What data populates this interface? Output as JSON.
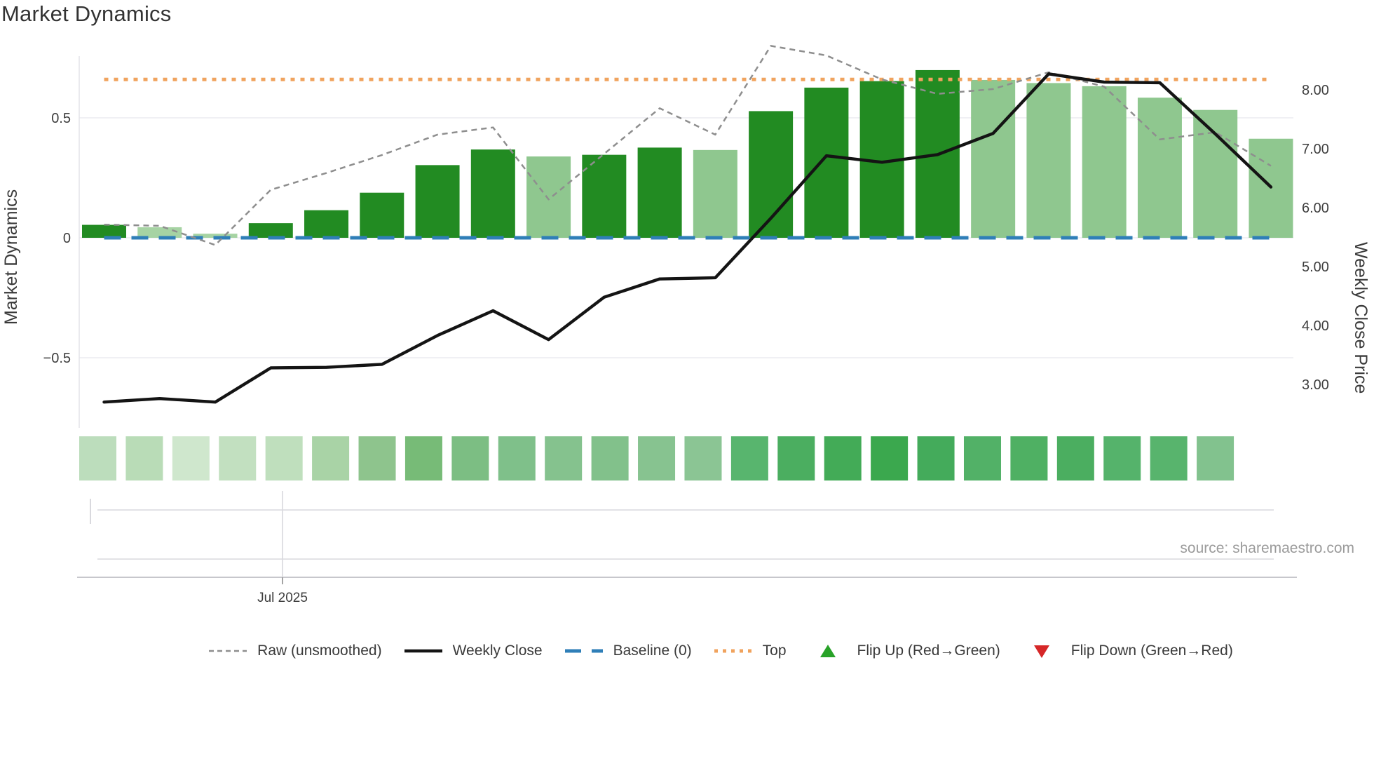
{
  "title": "Market Dynamics",
  "source": "source: sharemaestro.com",
  "axes": {
    "left": {
      "title": "Market Dynamics",
      "ticks": [
        {
          "value": 0.5,
          "label": "0.5"
        },
        {
          "value": 0,
          "label": "0"
        },
        {
          "value": -0.5,
          "label": "−0.5"
        }
      ]
    },
    "right": {
      "title": "Weekly Close Price",
      "ticks": [
        {
          "value": 8,
          "label": "8.00"
        },
        {
          "value": 7,
          "label": "7.00"
        },
        {
          "value": 6,
          "label": "6.00"
        },
        {
          "value": 5,
          "label": "5.00"
        },
        {
          "value": 4,
          "label": "4.00"
        },
        {
          "value": 3,
          "label": "3.00"
        }
      ]
    },
    "bottom": {
      "tick_label": "Jul 2025"
    }
  },
  "legend": {
    "items": [
      {
        "label": "Raw (unsmoothed)",
        "swatch": "dash",
        "color": "#8e8e8e"
      },
      {
        "label": "Weekly Close",
        "swatch": "solid",
        "color": "#141414"
      },
      {
        "label": "Baseline (0)",
        "swatch": "longdash",
        "color": "#2f7fb8"
      },
      {
        "label": "Top",
        "swatch": "dot",
        "color": "#f0a35e"
      },
      {
        "label": "Flip Up (Red→Green)",
        "swatch": "triangle-up",
        "color": "#28a228"
      },
      {
        "label": "Flip Down (Green→Red)",
        "swatch": "triangle-down",
        "color": "#d62728"
      }
    ]
  },
  "colors": {
    "bar_dark": "#228b22",
    "bar_light": "#8fc78f",
    "bar_pale": "#a6d3a3",
    "weekly_close": "#141414",
    "raw_line": "#8e8e8e",
    "baseline": "#2f7fb8",
    "top_line": "#f0a35e",
    "grid": "#ebebf0",
    "spine": "#e4e4e9",
    "slider_line": "#d9d9de",
    "axis_line": "#c7c7cc"
  },
  "chart_data": {
    "type": "bar+line",
    "n_periods": 22,
    "bars": {
      "name": "Market Dynamics score",
      "values": [
        0.054,
        0.044,
        0.017,
        0.061,
        0.115,
        0.188,
        0.303,
        0.368,
        0.339,
        0.346,
        0.376,
        0.366,
        0.528,
        0.626,
        0.653,
        0.699,
        0.658,
        0.645,
        0.632,
        0.584,
        0.533,
        0.413
      ],
      "shade": [
        "dark",
        "pale",
        "pale",
        "dark",
        "dark",
        "dark",
        "dark",
        "dark",
        "light",
        "dark",
        "dark",
        "light",
        "dark",
        "dark",
        "dark",
        "dark",
        "light",
        "light",
        "light",
        "light",
        "light",
        "light"
      ]
    },
    "weekly_close": {
      "name": "Weekly Close",
      "axis": "right",
      "values": [
        2.7,
        2.76,
        2.7,
        3.28,
        3.29,
        3.34,
        3.83,
        4.25,
        3.76,
        4.48,
        4.79,
        4.81,
        5.82,
        6.88,
        6.77,
        6.9,
        7.26,
        8.27,
        8.13,
        8.12,
        7.25,
        6.35
      ]
    },
    "raw_unsmoothed": {
      "name": "Raw (unsmoothed)",
      "axis": "left",
      "values": [
        0.055,
        0.05,
        -0.03,
        0.2,
        0.27,
        0.345,
        0.43,
        0.46,
        0.16,
        0.35,
        0.54,
        0.43,
        0.8,
        0.76,
        0.66,
        0.6,
        0.62,
        0.69,
        0.63,
        0.41,
        0.44,
        0.3
      ]
    },
    "baseline_value": 0,
    "top_line_value": 0.66,
    "left_axis_range_hint": [
      -0.75,
      0.76
    ],
    "right_axis_range_hint": [
      2.4,
      8.6
    ],
    "heatmap_strip": {
      "colors": [
        "#bcddbc",
        "#b9dcb7",
        "#cfe7cd",
        "#c2e0c0",
        "#bfdfbd",
        "#a9d3a6",
        "#8ec48d",
        "#77bb77",
        "#7cbe83",
        "#7fc08a",
        "#85c28e",
        "#82c18b",
        "#87c390",
        "#8bc594",
        "#58b56e",
        "#4bae60",
        "#43ab57",
        "#3ba84e",
        "#44ab5b",
        "#52b167",
        "#4fb063",
        "#4bae60",
        "#55b36b",
        "#58b46d",
        "#82c28e"
      ]
    }
  }
}
